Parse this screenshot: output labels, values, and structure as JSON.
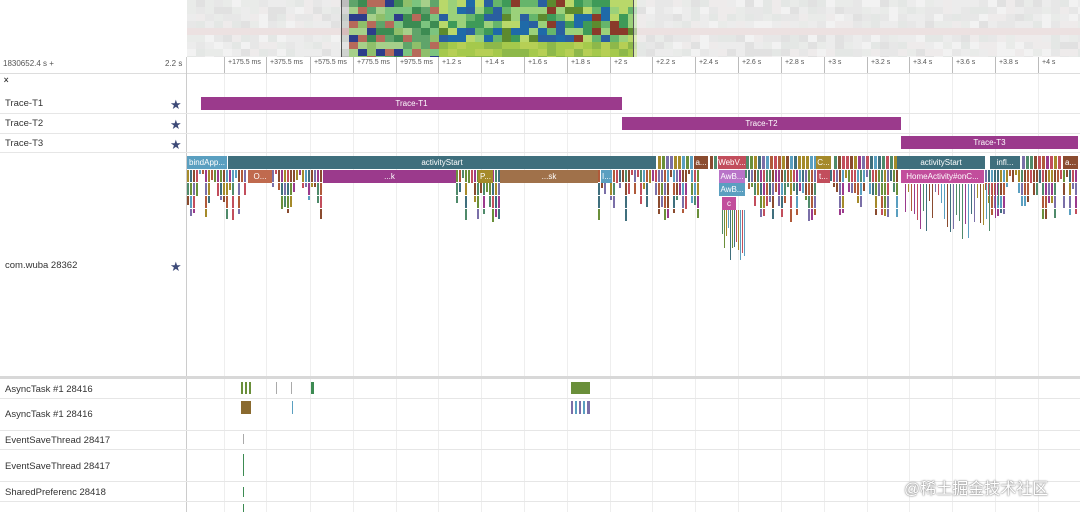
{
  "overview": {
    "label": "timeline-overview-minimap"
  },
  "axis": {
    "origin": "1830652.4 s +",
    "span": "2.2 s",
    "ticks": [
      "+175.5 ms",
      "+375.5 ms",
      "+575.5 ms",
      "+775.5 ms",
      "+975.5 ms",
      "+1.2 s",
      "+1.4 s",
      "+1.6 s",
      "+1.8 s",
      "+2 s",
      "+2.2 s",
      "+2.4 s",
      "+2.6 s",
      "+2.8 s",
      "+3 s",
      "+3.2 s",
      "+3.4 s",
      "+3.6 s",
      "+3.8 s",
      "+4 s"
    ]
  },
  "tracks": [
    {
      "label": "Trace-T1",
      "slice": "Trace-T1"
    },
    {
      "label": "Trace-T2",
      "slice": "Trace-T2"
    },
    {
      "label": "Trace-T3",
      "slice": "Trace-T3"
    }
  ],
  "process": {
    "label": "com.wuba 28362",
    "slices": [
      "bindApp...",
      "activityStart",
      "a...",
      "WebV...",
      "C...",
      "activityStart",
      "infl...",
      "a..."
    ],
    "sub_slices": [
      "O...",
      "...k",
      "P...",
      "...sk",
      "I...",
      "AwB...",
      "AwB...",
      "c",
      "t...",
      "HomeActivity#onC..."
    ]
  },
  "threads": [
    "AsyncTask #1 28416",
    "AsyncTask #1 28416",
    "EventSaveThread 28417",
    "EventSaveThread 28417",
    "SharedPreferenc 28418"
  ],
  "watermark": "@稀土掘金技术社区",
  "colors": {
    "trace": "#9b3a8c",
    "activity": "#3f6f7d",
    "star": "#3d4a78"
  }
}
